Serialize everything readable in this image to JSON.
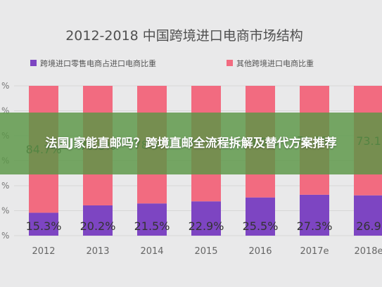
{
  "chart_data": {
    "type": "bar",
    "stacked": true,
    "title": "2012-2018 中国跨境进口电商市场结构",
    "categories": [
      "2012",
      "2013",
      "2014",
      "2015",
      "2016",
      "2017e",
      "2018e"
    ],
    "series": [
      {
        "name": "跨境进口零售电商占进口电商比重",
        "color": "#7d45c2",
        "values": [
          15.3,
          20.2,
          21.5,
          22.9,
          25.5,
          27.3,
          26.9
        ],
        "labels": [
          "15.3%",
          "20.2%",
          "21.5%",
          "22.9%",
          "25.5%",
          "27.3%",
          "26.9"
        ]
      },
      {
        "name": "其他跨境进口电商比重",
        "color": "#f26b80",
        "values": [
          84.7,
          79.8,
          78.5,
          77.1,
          74.5,
          72.7,
          73.1
        ],
        "labels": [
          "84.7%",
          "79.8%",
          "78.5%",
          "77.1%",
          "74.5%",
          "72.7%",
          "73.1"
        ]
      }
    ],
    "ylim": [
      0,
      100
    ],
    "ytick_labels": [
      "%",
      "%",
      "%",
      "%",
      "%",
      "%",
      "%"
    ],
    "grid": true,
    "legend_position": "top-left"
  },
  "overlay": {
    "title": "法国J家能直邮吗？跨境直邮全流程拆解及替代方案推荐"
  }
}
